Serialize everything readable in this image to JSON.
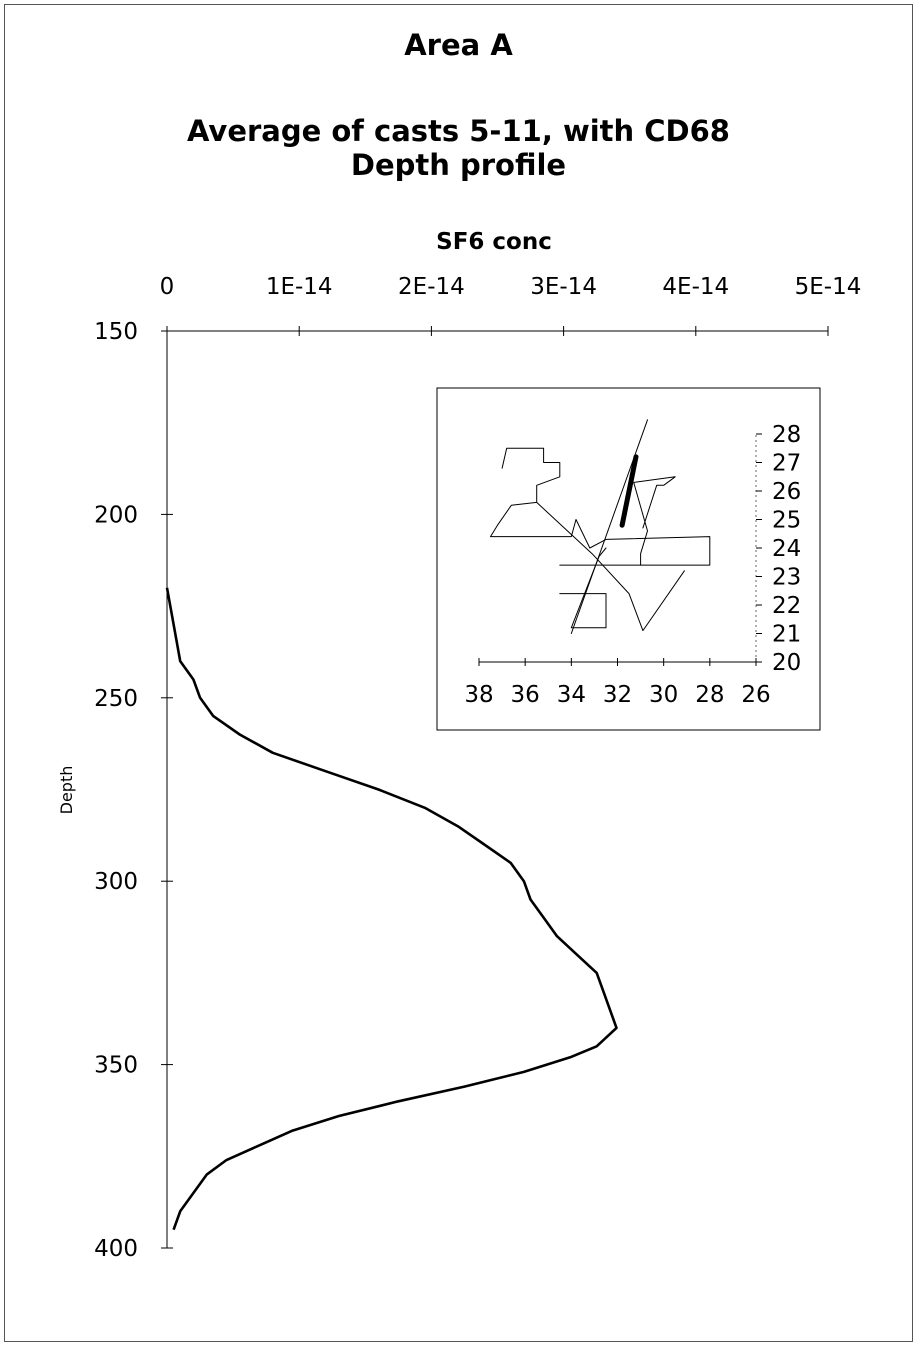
{
  "chart_data": [
    {
      "type": "line",
      "title": "Area A",
      "subtitle_lines": [
        "Average of casts 5-11, with CD68",
        "Depth profile"
      ],
      "xlabel": "SF6 conc",
      "ylabel": "Depth",
      "x_axis_position": "top",
      "y_axis_inverted": true,
      "xlim": [
        0,
        5e-14
      ],
      "ylim": [
        150,
        400
      ],
      "x_ticks": [
        0,
        1e-14,
        2e-14,
        3e-14,
        4e-14,
        5e-14
      ],
      "x_tick_labels": [
        "0",
        "1E-14",
        "2E-14",
        "3E-14",
        "4E-14",
        "5E-14"
      ],
      "y_ticks": [
        150,
        200,
        250,
        300,
        350,
        400
      ],
      "y_tick_labels": [
        "150",
        "200",
        "250",
        "300",
        "350",
        "400"
      ],
      "grid": false,
      "color": "#000000",
      "series": [
        {
          "points": [
            [
              0.0,
              220
            ],
            [
              5e-16,
              230
            ],
            [
              1e-15,
              240
            ],
            [
              2e-15,
              245
            ],
            [
              2.5e-15,
              250
            ],
            [
              3.5e-15,
              255
            ],
            [
              5.5e-15,
              260
            ],
            [
              8e-15,
              265
            ],
            [
              1.2e-14,
              270
            ],
            [
              1.6e-14,
              275
            ],
            [
              1.95e-14,
              280
            ],
            [
              2.2e-14,
              285
            ],
            [
              2.4e-14,
              290
            ],
            [
              2.6e-14,
              295
            ],
            [
              2.7e-14,
              300
            ],
            [
              2.75e-14,
              305
            ],
            [
              2.85e-14,
              310
            ],
            [
              2.95e-14,
              315
            ],
            [
              3.1e-14,
              320
            ],
            [
              3.25e-14,
              325
            ],
            [
              3.3e-14,
              330
            ],
            [
              3.35e-14,
              335
            ],
            [
              3.4e-14,
              340
            ],
            [
              3.25e-14,
              345
            ],
            [
              3.05e-14,
              348
            ],
            [
              2.7e-14,
              352
            ],
            [
              2.25e-14,
              356
            ],
            [
              1.75e-14,
              360
            ],
            [
              1.3e-14,
              364
            ],
            [
              9.5e-15,
              368
            ],
            [
              7e-15,
              372
            ],
            [
              4.5e-15,
              376
            ],
            [
              3e-15,
              380
            ],
            [
              2e-15,
              385
            ],
            [
              1e-15,
              390
            ],
            [
              5e-16,
              395
            ]
          ]
        }
      ]
    },
    {
      "type": "line",
      "role": "inset-map",
      "title": "",
      "xlim": [
        38,
        26
      ],
      "ylim": [
        20,
        28
      ],
      "x_ticks": [
        38,
        36,
        34,
        32,
        30,
        28,
        26
      ],
      "x_tick_labels": [
        "38",
        "36",
        "34",
        "32",
        "30",
        "28",
        "26"
      ],
      "y_ticks": [
        20,
        21,
        22,
        23,
        24,
        25,
        26,
        27,
        28
      ],
      "y_tick_labels": [
        "20",
        "21",
        "22",
        "23",
        "24",
        "25",
        "26",
        "27",
        "28"
      ],
      "y_axis_position": "right",
      "grid": false,
      "series": [
        {
          "role": "outline",
          "points": [
            [
              37,
              26.8
            ],
            [
              36.8,
              27.5
            ],
            [
              35.2,
              27.5
            ],
            [
              35.2,
              27.0
            ],
            [
              34.5,
              27.0
            ],
            [
              34.5,
              26.5
            ],
            [
              35.5,
              26.2
            ],
            [
              35.5,
              25.6
            ],
            [
              36.6,
              25.5
            ],
            [
              37.2,
              24.8
            ],
            [
              37.5,
              24.4
            ],
            [
              34.0,
              24.4
            ],
            [
              33.8,
              25.0
            ],
            [
              33.2,
              24.0
            ],
            [
              32.5,
              24.3
            ],
            [
              28.0,
              24.4
            ],
            [
              28.0,
              23.4
            ],
            [
              34.5,
              23.4
            ]
          ]
        },
        {
          "role": "outline",
          "points": [
            [
              34.5,
              22.4
            ],
            [
              32.5,
              22.4
            ],
            [
              32.5,
              21.2
            ],
            [
              34.0,
              21.2
            ],
            [
              32.8,
              23.7
            ],
            [
              32.5,
              24.0
            ]
          ]
        },
        {
          "role": "outline",
          "points": [
            [
              35.5,
              25.6
            ],
            [
              33.1,
              23.8
            ],
            [
              31.5,
              22.4
            ],
            [
              30.9,
              21.1
            ],
            [
              29.1,
              23.2
            ]
          ]
        },
        {
          "role": "outline",
          "points": [
            [
              31.0,
              23.4
            ],
            [
              31.0,
              23.8
            ],
            [
              30.7,
              24.6
            ],
            [
              31.3,
              26.3
            ],
            [
              29.5,
              26.5
            ],
            [
              30.0,
              26.2
            ],
            [
              30.3,
              26.2
            ],
            [
              30.9,
              24.7
            ]
          ]
        },
        {
          "role": "track",
          "points": [
            [
              34.0,
              21.0
            ],
            [
              30.7,
              28.5
            ]
          ]
        },
        {
          "role": "highlight",
          "points": [
            [
              31.8,
              24.8
            ],
            [
              31.2,
              27.2
            ]
          ]
        }
      ]
    }
  ]
}
